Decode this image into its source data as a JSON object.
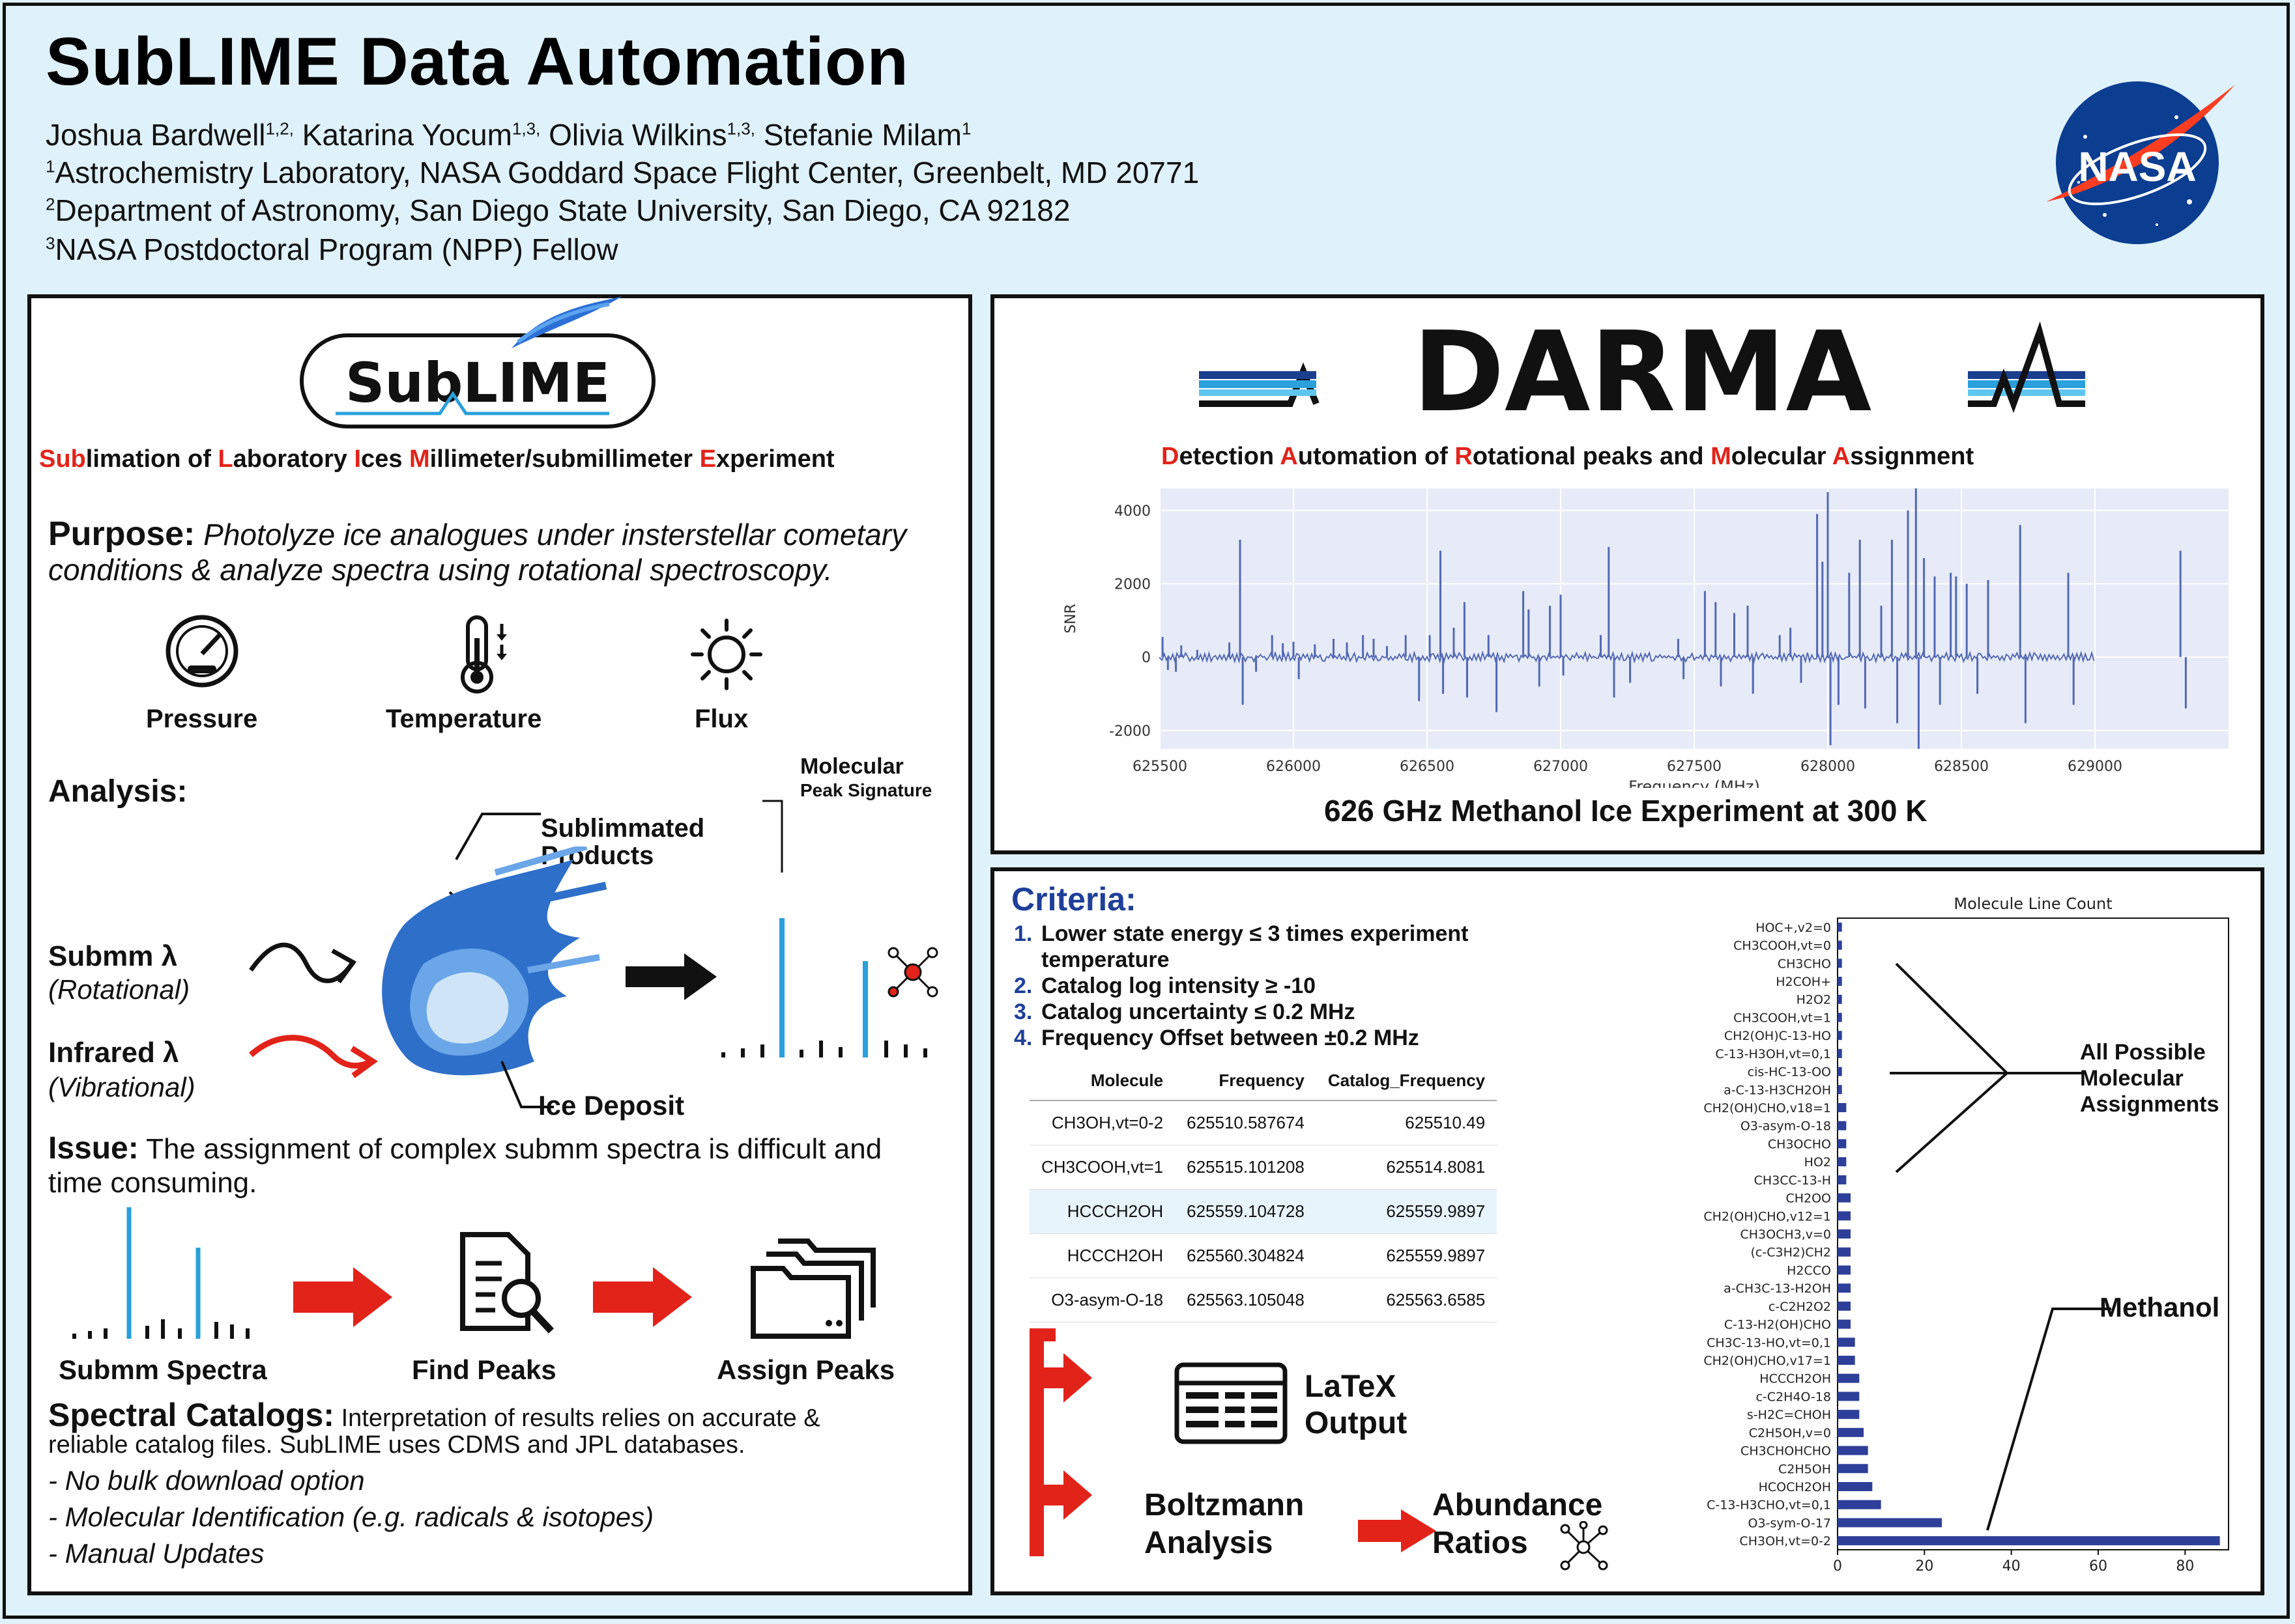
{
  "header": {
    "title": "SubLIME Data Automation",
    "authors": [
      {
        "name": "Joshua Bardwell",
        "sup": "1,2,"
      },
      {
        "name": " Katarina Yocum",
        "sup": "1,3,"
      },
      {
        "name": " Olivia Wilkins",
        "sup": "1,3,"
      },
      {
        "name": " Stefanie Milam",
        "sup": "1"
      }
    ],
    "affiliations": [
      {
        "sup": "1",
        "text": "Astrochemistry Laboratory, NASA Goddard Space Flight Center, Greenbelt, MD 20771"
      },
      {
        "sup": "2",
        "text": "Department of Astronomy, San Diego State University, San Diego, CA 92182"
      },
      {
        "sup": "3",
        "text": "NASA Postdoctoral Program (NPP) Fellow"
      }
    ],
    "logo_text": "NASA"
  },
  "left": {
    "logo_text": "SubLIME",
    "acronym": [
      {
        "hl": "Sub",
        "rest": "limation of "
      },
      {
        "hl": "L",
        "rest": "aboratory "
      },
      {
        "hl": "I",
        "rest": "ces "
      },
      {
        "hl": "M",
        "rest": "illimeter/submillimeter "
      },
      {
        "hl": "E",
        "rest": "xperiment"
      }
    ],
    "purpose_label": "Purpose:",
    "purpose_text": "Photolyze ice analogues under insterstellar cometary",
    "purpose_text2": "conditions & analyze spectra using rotational spectroscopy.",
    "icons": {
      "pressure": "Pressure",
      "temperature": "Temperature",
      "flux": "Flux"
    },
    "analysis_label": "Analysis:",
    "sublimmated": "Sublimmated",
    "products": "Products",
    "molecular": "Molecular",
    "peak_signature": "Peak Signature",
    "submm": "Submm  λ",
    "rotational": "(Rotational)",
    "infrared": "Infrared  λ",
    "vibrational": "(Vibrational)",
    "ice_deposit": "Ice Deposit",
    "issue_label": "Issue:",
    "issue_text": "The assignment of complex submm spectra is difficult and",
    "issue_text2": "time consuming.",
    "flow": [
      "Submm Spectra",
      "Find Peaks",
      "Assign Peaks"
    ],
    "catalogs_label": "Spectral Catalogs:",
    "catalogs_text": "Interpretation of results relies on accurate &",
    "catalogs_text2": "reliable catalog files. SubLIME uses CDMS and JPL databases.",
    "bullets": [
      "- No bulk download option",
      "- Molecular Identification (e.g. radicals & isotopes)",
      "- Manual Updates"
    ],
    "accent_red": "#e2231a",
    "accent_green": "#2fb56b",
    "accent_blue": "#2aa0dc"
  },
  "darma": {
    "logo_text": "DARMA",
    "acronym": [
      {
        "hl": "D",
        "rest": "etection "
      },
      {
        "hl": "A",
        "rest": "utomation of "
      },
      {
        "hl": "R",
        "rest": "otational peaks and "
      },
      {
        "hl": "M",
        "rest": "olecular "
      },
      {
        "hl": "A",
        "rest": "ssignment"
      }
    ],
    "caption": "626 GHz Methanol Ice Experiment at 300 K"
  },
  "criteria": {
    "title": "Criteria:",
    "items": [
      {
        "n": "1.",
        "text": "Lower state energy ≤ 3 times experiment",
        "text2": "temperature"
      },
      {
        "n": "2.",
        "text": "Catalog log intensity ≥ -10",
        "text2": ""
      },
      {
        "n": "3.",
        "text": "Catalog uncertainty ≤ 0.2 MHz",
        "text2": ""
      },
      {
        "n": "4.",
        "text": "Frequency Offset between ±0.2 MHz",
        "text2": ""
      }
    ],
    "table": {
      "headers": [
        "Molecule",
        "Frequency",
        "Catalog_Frequency"
      ],
      "rows": [
        [
          "CH3OH,vt=0-2",
          "625510.587674",
          "625510.49"
        ],
        [
          "CH3COOH,vt=1",
          "625515.101208",
          "625514.8081"
        ],
        [
          "HCCCH2OH",
          "625559.104728",
          "625559.9897"
        ],
        [
          "HCCCH2OH",
          "625560.304824",
          "625559.9897"
        ],
        [
          "O3-asym-O-18",
          "625563.105048",
          "625563.6585"
        ]
      ]
    },
    "latex": "LaTeX",
    "output": "Output",
    "boltzmann": "Boltzmann",
    "analysis": "Analysis",
    "abundance": "Abundance",
    "ratios": "Ratios",
    "all_possible": [
      "All Possible",
      "Molecular",
      "Assignments"
    ],
    "methanol": "Methanol"
  },
  "chart_data": [
    {
      "type": "line",
      "title": "",
      "xlabel": "Frequency (MHz)",
      "ylabel": "SNR",
      "xlim": [
        625500,
        629500
      ],
      "ylim": [
        -2500,
        4600
      ],
      "xticks": [
        625500,
        626000,
        626500,
        627000,
        627500,
        628000,
        628500,
        629000
      ],
      "yticks": [
        -2000,
        0,
        2000,
        4000
      ],
      "color": "#5468b4",
      "peaks": [
        {
          "x": 625510,
          "y": 550
        },
        {
          "x": 625530,
          "y": -350
        },
        {
          "x": 625560,
          "y": -400
        },
        {
          "x": 625580,
          "y": 320
        },
        {
          "x": 625640,
          "y": 200
        },
        {
          "x": 625760,
          "y": 400
        },
        {
          "x": 625800,
          "y": 3200
        },
        {
          "x": 625810,
          "y": -1300
        },
        {
          "x": 625860,
          "y": -400
        },
        {
          "x": 625920,
          "y": 600
        },
        {
          "x": 625960,
          "y": 380
        },
        {
          "x": 626000,
          "y": 420
        },
        {
          "x": 626020,
          "y": -600
        },
        {
          "x": 626080,
          "y": 350
        },
        {
          "x": 626150,
          "y": 500
        },
        {
          "x": 626200,
          "y": 400
        },
        {
          "x": 626260,
          "y": 600
        },
        {
          "x": 626300,
          "y": 500
        },
        {
          "x": 626350,
          "y": 300
        },
        {
          "x": 626420,
          "y": 600
        },
        {
          "x": 626470,
          "y": -1200
        },
        {
          "x": 626510,
          "y": 600
        },
        {
          "x": 626550,
          "y": 2900
        },
        {
          "x": 626560,
          "y": -1000
        },
        {
          "x": 626600,
          "y": 800
        },
        {
          "x": 626640,
          "y": 1500
        },
        {
          "x": 626650,
          "y": -1100
        },
        {
          "x": 626730,
          "y": 600
        },
        {
          "x": 626760,
          "y": -1500
        },
        {
          "x": 626860,
          "y": 1800
        },
        {
          "x": 626880,
          "y": 1300
        },
        {
          "x": 626920,
          "y": -800
        },
        {
          "x": 626960,
          "y": 1400
        },
        {
          "x": 627000,
          "y": 1700
        },
        {
          "x": 627010,
          "y": -500
        },
        {
          "x": 627150,
          "y": 600
        },
        {
          "x": 627180,
          "y": 3000
        },
        {
          "x": 627200,
          "y": -1100
        },
        {
          "x": 627260,
          "y": -700
        },
        {
          "x": 627440,
          "y": 500
        },
        {
          "x": 627460,
          "y": -600
        },
        {
          "x": 627540,
          "y": 1800
        },
        {
          "x": 627580,
          "y": 1500
        },
        {
          "x": 627600,
          "y": -800
        },
        {
          "x": 627650,
          "y": 1200
        },
        {
          "x": 627700,
          "y": 1400
        },
        {
          "x": 627720,
          "y": -1000
        },
        {
          "x": 627820,
          "y": 600
        },
        {
          "x": 627860,
          "y": 800
        },
        {
          "x": 627900,
          "y": -700
        },
        {
          "x": 627960,
          "y": 3900
        },
        {
          "x": 627980,
          "y": 2600
        },
        {
          "x": 628000,
          "y": 4500
        },
        {
          "x": 628010,
          "y": -2400
        },
        {
          "x": 628040,
          "y": -1300
        },
        {
          "x": 628080,
          "y": 2300
        },
        {
          "x": 628120,
          "y": 3200
        },
        {
          "x": 628140,
          "y": -1400
        },
        {
          "x": 628200,
          "y": 1400
        },
        {
          "x": 628240,
          "y": 3200
        },
        {
          "x": 628260,
          "y": -1800
        },
        {
          "x": 628300,
          "y": 4000
        },
        {
          "x": 628330,
          "y": 4600
        },
        {
          "x": 628340,
          "y": -2500
        },
        {
          "x": 628360,
          "y": 2700
        },
        {
          "x": 628400,
          "y": 2200
        },
        {
          "x": 628420,
          "y": -1300
        },
        {
          "x": 628460,
          "y": 2300
        },
        {
          "x": 628480,
          "y": 2200
        },
        {
          "x": 628520,
          "y": 2000
        },
        {
          "x": 628560,
          "y": -1000
        },
        {
          "x": 628600,
          "y": 2100
        },
        {
          "x": 628720,
          "y": 3600
        },
        {
          "x": 628740,
          "y": -1800
        },
        {
          "x": 628900,
          "y": 2300
        },
        {
          "x": 628920,
          "y": -1300
        },
        {
          "x": 629320,
          "y": 2900
        },
        {
          "x": 629340,
          "y": -1400
        }
      ]
    },
    {
      "type": "bar",
      "orientation": "horizontal",
      "title": "Molecule Line Count",
      "xlim": [
        0,
        90
      ],
      "xticks": [
        0,
        20,
        40,
        60,
        80
      ],
      "color": "#2e3f99",
      "categories": [
        "HOC+,v2=0",
        "CH3COOH,vt=0",
        "CH3CHO",
        "H2COH+",
        "H2O2",
        "CH3COOH,vt=1",
        "CH2(OH)C-13-HO",
        "C-13-H3OH,vt=0,1",
        "cis-HC-13-OO",
        "a-C-13-H3CH2OH",
        "CH2(OH)CHO,v18=1",
        "O3-asym-O-18",
        "CH3OCHO",
        "HO2",
        "CH3CC-13-H",
        "CH2OO",
        "CH2(OH)CHO,v12=1",
        "CH3OCH3,v=0",
        "(c-C3H2)CH2",
        "H2CCO",
        "a-CH3C-13-H2OH",
        "c-C2H2O2",
        "C-13-H2(OH)CHO",
        "CH3C-13-HO,vt=0,1",
        "CH2(OH)CHO,v17=1",
        "HCCCH2OH",
        "c-C2H4O-18",
        "s-H2C=CHOH",
        "C2H5OH,v=0",
        "CH3CHOHCHO",
        "C2H5OH",
        "HCOCH2OH",
        "C-13-H3CHO,vt=0,1",
        "O3-sym-O-17",
        "CH3OH,vt=0-2"
      ],
      "values": [
        1,
        1,
        1,
        1,
        1,
        1,
        1,
        1,
        1,
        1,
        2,
        2,
        2,
        2,
        2,
        3,
        3,
        3,
        3,
        3,
        3,
        3,
        3,
        4,
        4,
        5,
        5,
        5,
        6,
        7,
        7,
        8,
        10,
        24,
        88
      ]
    }
  ]
}
